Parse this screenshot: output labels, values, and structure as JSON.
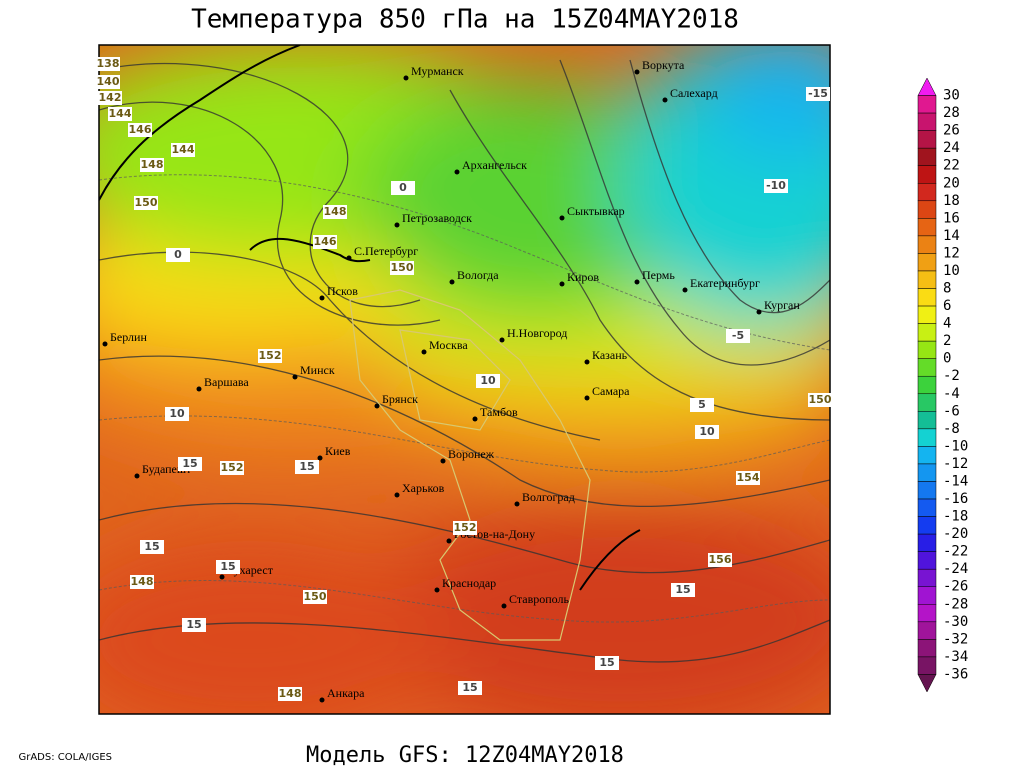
{
  "title": "Температура 850 гПа на 15Z04MAY2018",
  "caption": "Модель GFS: 12Z04MAY2018",
  "credit": "GrADS: COLA/IGES",
  "colorbar": {
    "ticks": [
      30,
      28,
      26,
      24,
      22,
      20,
      18,
      16,
      14,
      12,
      10,
      8,
      6,
      4,
      2,
      0,
      -2,
      -4,
      -6,
      -8,
      -10,
      -12,
      -14,
      -16,
      -18,
      -20,
      -22,
      -24,
      -26,
      -28,
      -30,
      -32,
      -34,
      -36
    ],
    "colors": [
      "#f01cf0",
      "#e01890",
      "#c8146e",
      "#b41446",
      "#a0141e",
      "#be1414",
      "#d2281e",
      "#dc4614",
      "#e66414",
      "#eb8214",
      "#f0a014",
      "#f5be14",
      "#fadc14",
      "#f0f014",
      "#c8f014",
      "#96e614",
      "#64dc28",
      "#3cd23c",
      "#28c864",
      "#14be96",
      "#14d2d2",
      "#14b4f0",
      "#1496f0",
      "#1478f0",
      "#145af0",
      "#143cf0",
      "#281ee6",
      "#5014dc",
      "#7814d2",
      "#a014d2",
      "#b414c8",
      "#a0149b",
      "#8c1478",
      "#781464",
      "#641450"
    ]
  },
  "cities": [
    "Мурманск",
    "Воркута",
    "Салехард",
    "Архангельск",
    "Петрозаводск",
    "Сыктывкар",
    "С.Петербург",
    "Вологда",
    "Киров",
    "Пермь",
    "Екатеринбург",
    "Курган",
    "Псков",
    "Берлин",
    "Н.Новгород",
    "Москва",
    "Казань",
    "Минск",
    "Варшава",
    "Самара",
    "Брянск",
    "Тамбов",
    "Киев",
    "Воронеж",
    "Будапешт",
    "Харьков",
    "Волгоград",
    "Ростов-на-Дону",
    "Бухарест",
    "Краснодар",
    "Ставрополь",
    "Анкара"
  ],
  "contour_labels": [
    138,
    140,
    142,
    144,
    146,
    148,
    150,
    144,
    146,
    148,
    150,
    152,
    152,
    154,
    156,
    152,
    150,
    148,
    148,
    150,
    15,
    10,
    0,
    0,
    5,
    10,
    15,
    15,
    15,
    15,
    15,
    -5,
    -10,
    -15,
    10,
    15,
    15
  ]
}
